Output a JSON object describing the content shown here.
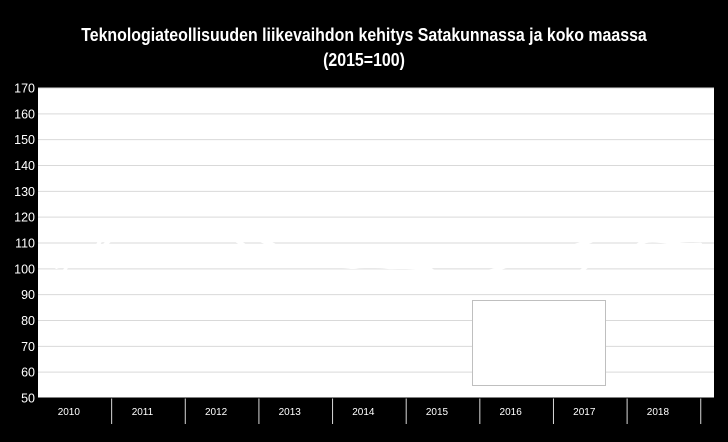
{
  "chart_data": {
    "type": "line",
    "title": "Teknologiateollisuuden liikevaihdon kehitys Satakunnassa ja koko maassa",
    "subtitle": "(2015=100)",
    "xlabel": "",
    "ylabel": "",
    "ylim": [
      50,
      170
    ],
    "yticks": [
      50,
      60,
      70,
      80,
      90,
      100,
      110,
      120,
      130,
      140,
      150,
      160,
      170
    ],
    "categories": [
      "2010",
      "2011",
      "2012",
      "2013",
      "2014",
      "2015",
      "2016",
      "2017",
      "2018"
    ],
    "x": [
      2010.0,
      2010.25,
      2010.5,
      2010.75,
      2011.0,
      2011.25,
      2011.5,
      2011.75,
      2012.0,
      2012.25,
      2012.5,
      2012.75,
      2013.0,
      2013.25,
      2013.5,
      2013.75,
      2014.0,
      2014.25,
      2014.5,
      2014.75,
      2015.0,
      2015.25,
      2015.5,
      2015.75,
      2016.0,
      2016.25,
      2016.5,
      2016.75,
      2017.0,
      2017.25,
      2017.5,
      2017.75,
      2018.0,
      2018.25,
      2018.5,
      2018.75
    ],
    "series": [
      {
        "values": [
          95.5,
          104,
          108,
          114.5,
          117.5,
          117.5,
          118.5,
          115.5,
          112.5,
          113,
          114,
          111,
          109,
          105.5,
          102.5,
          101.5,
          103,
          107.5,
          107.5,
          105.5,
          101.5,
          96.5,
          93.5,
          93.5,
          93.5,
          94.5,
          98,
          97.5,
          97.5,
          101.5,
          105,
          107.5,
          110.5,
          110.5,
          109.5,
          109.5
        ],
        "color": "#ffffff"
      },
      {
        "values": [
          100.5,
          102.5,
          106.5,
          111,
          112.5,
          112,
          114,
          114.5,
          114,
          113,
          110,
          107,
          105,
          104,
          103,
          101.5,
          100.5,
          101,
          100.5,
          100.5,
          100,
          98.5,
          98.5,
          98.5,
          100,
          102,
          105,
          107.5,
          109,
          110.5,
          112.5,
          114,
          115,
          116,
          117,
          117.5
        ],
        "color": "#ffffff"
      }
    ],
    "grid": true,
    "legend": "bottom-center, covered by a blank white box"
  },
  "colors": {
    "background": "#000000",
    "plot_background": "#ffffff",
    "grid": "#d9d9d9",
    "axis": "#000000",
    "line": "#ffffff"
  }
}
